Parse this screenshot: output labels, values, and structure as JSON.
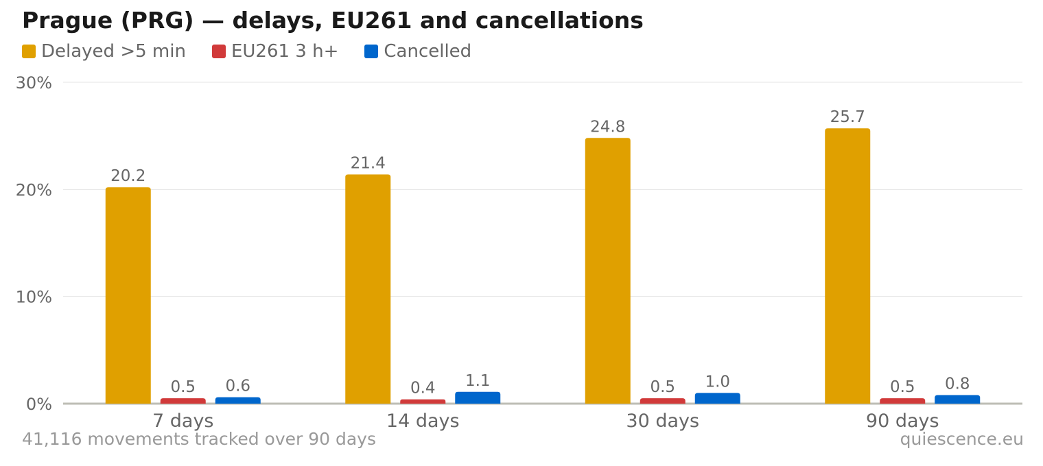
{
  "header": {
    "title": "Prague (PRG) — delays, EU261 and cancellations"
  },
  "legend": [
    {
      "label": "Delayed >5 min",
      "color": "#E0A000"
    },
    {
      "label": "EU261 3 h+",
      "color": "#D13A3A"
    },
    {
      "label": "Cancelled",
      "color": "#0066CC"
    }
  ],
  "footer": {
    "note": "41,116 movements tracked over 90 days",
    "source": "quiescence.eu"
  },
  "chart_data": {
    "type": "bar",
    "title": "Prague (PRG) — delays, EU261 and cancellations",
    "xlabel": "",
    "ylabel": "",
    "categories": [
      "7 days",
      "14 days",
      "30 days",
      "90 days"
    ],
    "series": [
      {
        "name": "Delayed >5 min",
        "color": "#E0A000",
        "values": [
          20.2,
          21.4,
          24.8,
          25.7
        ]
      },
      {
        "name": "EU261 3 h+",
        "color": "#D13A3A",
        "values": [
          0.5,
          0.4,
          0.5,
          0.5
        ]
      },
      {
        "name": "Cancelled",
        "color": "#0066CC",
        "values": [
          0.6,
          1.1,
          1.0,
          0.8
        ]
      }
    ],
    "ylim": [
      0,
      30
    ],
    "yticks": [
      "0%",
      "10%",
      "20%",
      "30%"
    ],
    "grid": true,
    "legend_position": "top-left",
    "data_labels": true
  }
}
